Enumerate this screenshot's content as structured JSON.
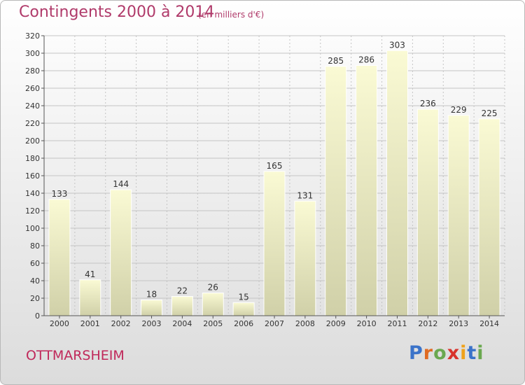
{
  "header": {
    "title": "Contingents 2000 à 2014",
    "subtitle": "(en milliers d'€)"
  },
  "footer": {
    "commune": "OTTMARSHEIM",
    "logo_letters": [
      "P",
      "r",
      "o",
      "x",
      "i",
      "t",
      "i"
    ]
  },
  "colors": {
    "title": "#b03a6a",
    "bar_top": "#fafad4",
    "bar_bottom": "#d0d0a8",
    "grid": "#c4c4c4"
  },
  "chart_data": {
    "type": "bar",
    "title": "Contingents 2000 à 2014",
    "subtitle": "(en milliers d'€)",
    "categories": [
      "2000",
      "2001",
      "2002",
      "2003",
      "2004",
      "2005",
      "2006",
      "2007",
      "2008",
      "2009",
      "2010",
      "2011",
      "2012",
      "2013",
      "2014"
    ],
    "values": [
      133,
      41,
      144,
      18,
      22,
      26,
      15,
      165,
      131,
      285,
      286,
      303,
      236,
      229,
      225
    ],
    "ylim": [
      0,
      320
    ],
    "yticks": [
      0,
      20,
      40,
      60,
      80,
      100,
      120,
      140,
      160,
      180,
      200,
      220,
      240,
      260,
      280,
      300,
      320
    ],
    "grid": true,
    "xlabel": "",
    "ylabel": ""
  }
}
